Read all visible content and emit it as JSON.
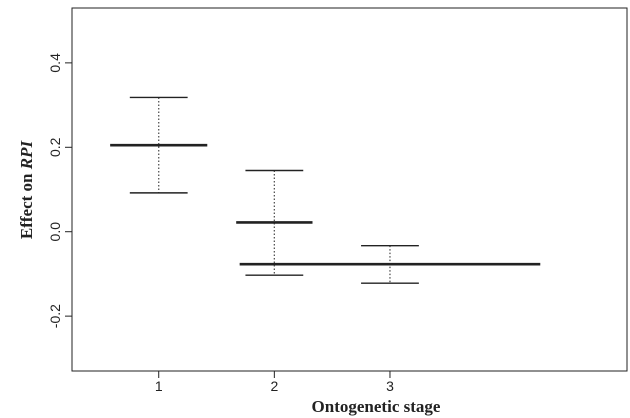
{
  "chart_data": {
    "type": "interval",
    "title": "",
    "xlabel": "Ontogenetic stage",
    "ylabel_prefix": "Effect on ",
    "ylabel_italic": "RPI",
    "x_ticks": [
      "1",
      "2",
      "3"
    ],
    "y_ticks": [
      "-0.2",
      "0.0",
      "0.2",
      "0.4"
    ],
    "ylim": [
      -0.33,
      0.53
    ],
    "xlim": [
      0.25,
      5.05
    ],
    "categories": [
      "1",
      "2",
      "3"
    ],
    "x": [
      1,
      2,
      3
    ],
    "estimate": [
      0.205,
      0.022,
      -0.077
    ],
    "lower": [
      0.092,
      -0.103,
      -0.122
    ],
    "upper": [
      0.318,
      0.145,
      -0.033
    ],
    "bar_halfwidth": [
      0.42,
      0.33,
      1.3
    ],
    "cap_halfwidth": 0.25,
    "grid": false,
    "legend": "none",
    "line_color": "#222222",
    "whisker_color": "#555555"
  }
}
